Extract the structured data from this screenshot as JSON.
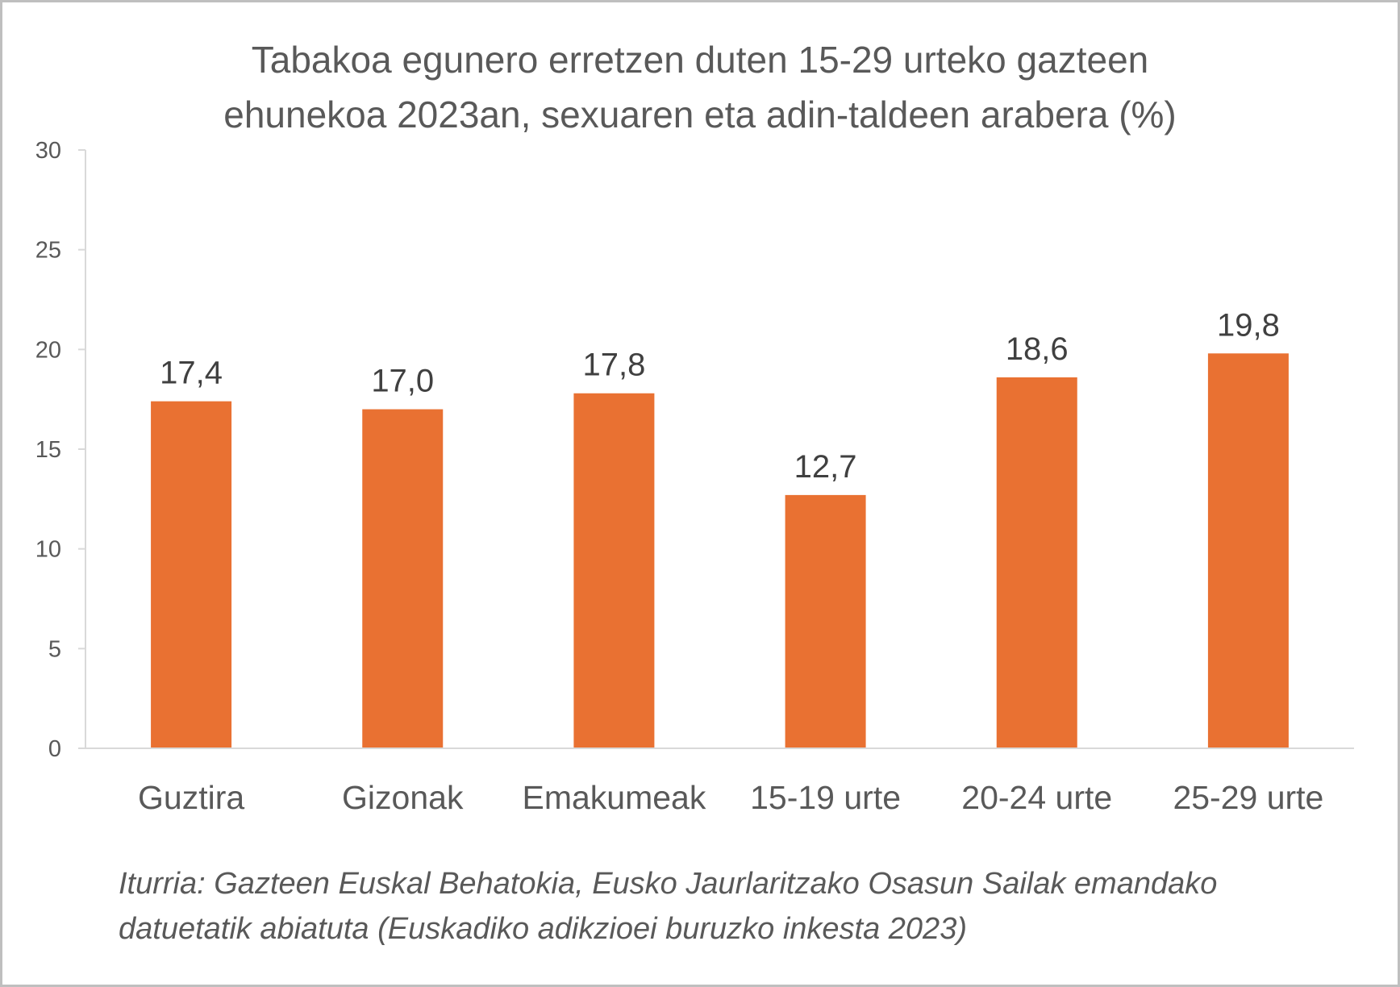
{
  "chart_data": {
    "type": "bar",
    "title_lines": [
      "Tabakoa egunero erretzen duten 15-29 urteko gazteen",
      "ehunekoa 2023an, sexuaren eta adin-taldeen arabera (%)"
    ],
    "categories": [
      "Guztira",
      "Gizonak",
      "Emakumeak",
      "15-19 urte",
      "20-24 urte",
      "25-29 urte"
    ],
    "values": [
      17.4,
      17.0,
      17.8,
      12.7,
      18.6,
      19.8
    ],
    "data_labels": [
      "17,4",
      "17,0",
      "17,8",
      "12,7",
      "18,6",
      "19,8"
    ],
    "ylim": [
      0,
      30
    ],
    "yticks": [
      0,
      5,
      10,
      15,
      20,
      25,
      30
    ],
    "grid": false,
    "legend": "none",
    "bar_color": "#E97132",
    "source_lines": [
      "Iturria: Gazteen Euskal Behatokia, Eusko Jaurlaritzako Osasun Sailak emandako",
      "datuetatik abiatuta (Euskadiko adikzioei buruzko inkesta 2023)"
    ]
  }
}
